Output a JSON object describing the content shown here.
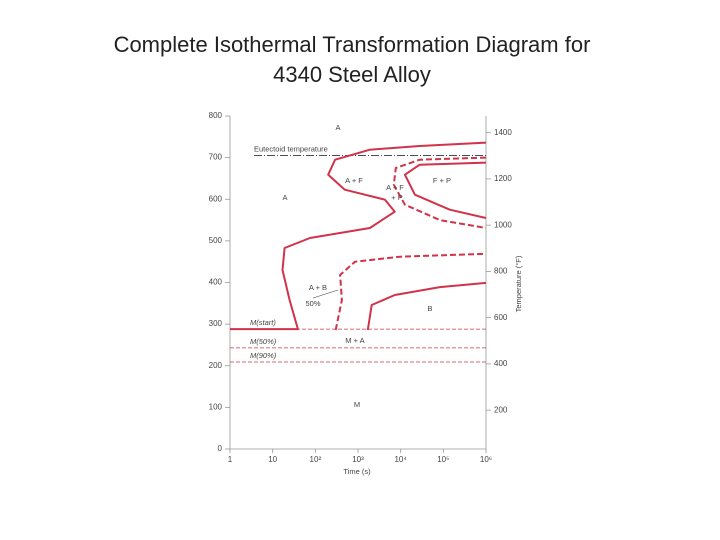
{
  "chart_data": {
    "type": "line",
    "title": [
      "Complete Isothermal Transformation Diagram for",
      "4340 Steel Alloy"
    ],
    "x_label": "Time (s)",
    "y2_label": "Temperature (°F)",
    "log_x": true,
    "grid": false,
    "xlim": [
      1,
      1000000
    ],
    "xticks": [
      1,
      10,
      {
        "value": 100,
        "label": "10²"
      },
      {
        "value": 1000,
        "label": "10³"
      },
      {
        "value": 10000,
        "label": "10⁴"
      },
      {
        "value": 100000,
        "label": "10⁵"
      },
      {
        "value": 1000000,
        "label": "10⁶"
      }
    ],
    "ylim": [
      0,
      800
    ],
    "yticks": [
      0,
      100,
      200,
      300,
      400,
      500,
      600,
      700,
      800
    ],
    "y2lim": [
      32,
      1472
    ],
    "y2ticks": [
      200,
      400,
      600,
      800,
      1000,
      1200,
      1400
    ],
    "series": [
      {
        "color": "#d0334a",
        "dashed": false,
        "x": [
          1,
          39,
          25,
          17,
          19,
          75,
          1900,
          7300,
          4300,
          490,
          200,
          290,
          1900,
          28000,
          1000000
        ],
        "values": [
          288,
          288,
          358,
          430,
          483,
          507,
          531,
          570,
          599,
          623,
          659,
          695,
          719,
          728,
          736
        ]
      },
      {
        "color": "#d0334a",
        "dashed": true,
        "x": [
          1000000,
          28000,
          7700,
          6900,
          12600,
          83000,
          1000000
        ],
        "values": [
          700,
          695,
          675,
          635,
          587,
          550,
          531
        ]
      },
      {
        "color": "#d0334a",
        "dashed": true,
        "x": [
          300,
          420,
          380,
          850,
          9600,
          1000000
        ],
        "values": [
          286,
          358,
          418,
          450,
          462,
          469
        ]
      },
      {
        "color": "#d0334a",
        "dashed": false,
        "x": [
          1000000,
          28000,
          12600,
          21600,
          142000,
          1000000
        ],
        "values": [
          688,
          683,
          659,
          611,
          575,
          555
        ]
      },
      {
        "color": "#d0334a",
        "dashed": false,
        "x": [
          1700,
          2100,
          7300,
          83000,
          1000000
        ],
        "values": [
          286,
          346,
          370,
          389,
          399
        ]
      }
    ],
    "hlines": [
      {
        "label": "Eutectoid temperature",
        "value": 705,
        "color": "#333333"
      },
      {
        "label": "M(start)",
        "value": 288,
        "color": "#d0334a"
      },
      {
        "label": "M(50%)",
        "value": 243,
        "color": "#d0334a"
      },
      {
        "label": "M(90%)",
        "value": 209,
        "color": "#d0334a"
      }
    ],
    "annotations": [
      "A",
      "A",
      "A + F",
      "A + F",
      "+ P",
      "F + P",
      "A + B",
      "50%",
      "B",
      "M + A",
      "M"
    ]
  }
}
